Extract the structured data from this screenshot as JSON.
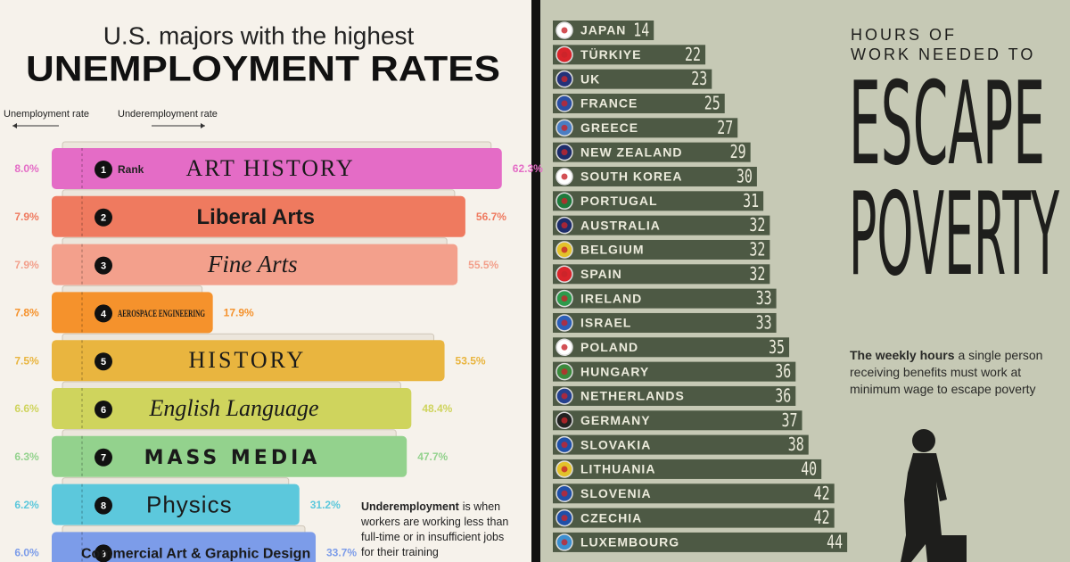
{
  "chart_data": [
    {
      "type": "bar",
      "orientation": "horizontal",
      "title": "U.S. majors with the highest",
      "title_emphasis": "UNEMPLOYMENT RATES",
      "rank_label": "Rank",
      "ranks": [
        1,
        2,
        3,
        4,
        5,
        6,
        7,
        8,
        9
      ],
      "categories": [
        "ART HISTORY",
        "Liberal Arts",
        "Fine Arts",
        "AEROSPACE ENGINEERING",
        "HISTORY",
        "English Language",
        "MASS MEDIA",
        "Physics",
        "Commercial Art & Graphic Design"
      ],
      "colors": [
        "#e46cc6",
        "#ef7a5f",
        "#f3a08c",
        "#f5922c",
        "#e9b53f",
        "#cfd45d",
        "#93d28d",
        "#5cc8dc",
        "#7c9ce9"
      ],
      "series": [
        {
          "name": "Unemployment rate",
          "values": [
            8.0,
            7.9,
            7.9,
            7.8,
            7.5,
            6.6,
            6.3,
            6.2,
            6.0
          ],
          "value_labels": [
            "8.0%",
            "7.9%",
            "7.9%",
            "7.8%",
            "7.5%",
            "6.6%",
            "6.3%",
            "6.2%",
            "6.0%"
          ]
        },
        {
          "name": "Underemployment rate",
          "values": [
            62.3,
            56.7,
            55.5,
            17.9,
            53.5,
            48.4,
            47.7,
            31.2,
            33.7
          ],
          "value_labels": [
            "62.3%",
            "56.7%",
            "55.5%",
            "17.9%",
            "53.5%",
            "48.4%",
            "47.7%",
            "31.2%",
            "33.7%"
          ]
        }
      ],
      "note_bold": "Underemployment",
      "note_lines": [
        "is when",
        "workers are working less than",
        "full-time or in insufficient jobs",
        "for their training"
      ]
    },
    {
      "type": "bar",
      "orientation": "horizontal",
      "title_lines": [
        "HOURS OF",
        "WORK NEEDED TO"
      ],
      "title_emphasis_lines": [
        "ESCAPE",
        "POVERTY"
      ],
      "subtitle_bold": "The weekly hours",
      "subtitle_lines": [
        "a single person",
        "receiving benefits must work at",
        "minimum wage to escape poverty"
      ],
      "color": "#4d5944",
      "categories": [
        "JAPAN",
        "TÜRKIYE",
        "UK",
        "FRANCE",
        "GREECE",
        "NEW ZEALAND",
        "SOUTH KOREA",
        "PORTUGAL",
        "AUSTRALIA",
        "BELGIUM",
        "SPAIN",
        "IRELAND",
        "ISRAEL",
        "POLAND",
        "HUNGARY",
        "NETHERLANDS",
        "GERMANY",
        "SLOVAKIA",
        "LITHUANIA",
        "SLOVENIA",
        "CZECHIA",
        "LUXEMBOURG"
      ],
      "values": [
        14,
        22,
        23,
        25,
        27,
        29,
        30,
        31,
        32,
        32,
        32,
        33,
        33,
        35,
        36,
        36,
        37,
        38,
        40,
        42,
        42,
        44
      ]
    }
  ]
}
